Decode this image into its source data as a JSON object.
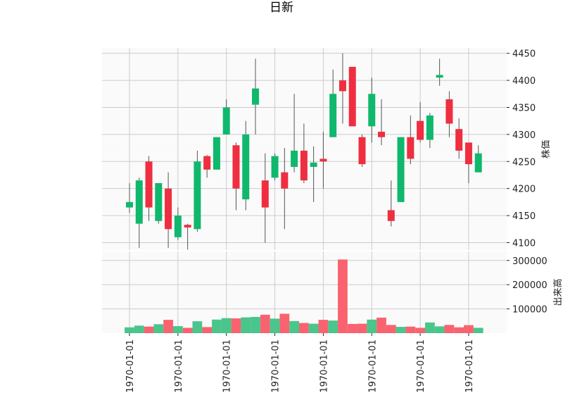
{
  "chart_data": {
    "type": "candlestick",
    "title": "日新",
    "price_ylabel": "株価",
    "volume_ylabel": "出来高",
    "price_ylim": [
      4085,
      4460
    ],
    "price_yticks": [
      4100,
      4150,
      4200,
      4250,
      4300,
      4350,
      4400,
      4450
    ],
    "volume_ylim": [
      0,
      340000
    ],
    "volume_yticks": [
      100000,
      200000,
      300000
    ],
    "volume_ytick_labels": [
      "100000",
      "200000",
      "300000"
    ],
    "xtick_index": [
      0,
      5,
      10,
      15,
      20,
      25,
      30,
      35
    ],
    "xtick_labels": [
      "1970-01-01",
      "1970-01-01",
      "1970-01-01",
      "1970-01-01",
      "1970-01-01",
      "1970-01-01",
      "1970-01-01",
      "1970-01-01"
    ],
    "grid": true,
    "up_color": "#ef2e40",
    "down_color": "#0fb86c",
    "up_volume_color": "#f9636f",
    "down_volume_color": "#4ac58c",
    "candles": [
      {
        "open": 4175,
        "high": 4210,
        "low": 4155,
        "close": 4165,
        "volume": 24000
      },
      {
        "open": 4215,
        "high": 4220,
        "low": 4090,
        "close": 4135,
        "volume": 31000
      },
      {
        "open": 4165,
        "high": 4260,
        "low": 4140,
        "close": 4250,
        "volume": 27000
      },
      {
        "open": 4210,
        "high": 4210,
        "low": 4135,
        "close": 4140,
        "volume": 37000
      },
      {
        "open": 4125,
        "high": 4230,
        "low": 4090,
        "close": 4200,
        "volume": 55000
      },
      {
        "open": 4150,
        "high": 4165,
        "low": 4105,
        "close": 4110,
        "volume": 29000
      },
      {
        "open": 4128,
        "high": 4135,
        "low": 4087,
        "close": 4133,
        "volume": 22000
      },
      {
        "open": 4250,
        "high": 4270,
        "low": 4120,
        "close": 4125,
        "volume": 49000
      },
      {
        "open": 4235,
        "high": 4262,
        "low": 4220,
        "close": 4260,
        "volume": 25000
      },
      {
        "open": 4295,
        "high": 4295,
        "low": 4235,
        "close": 4235,
        "volume": 56000
      },
      {
        "open": 4350,
        "high": 4365,
        "low": 4300,
        "close": 4300,
        "volume": 62000
      },
      {
        "open": 4200,
        "high": 4285,
        "low": 4160,
        "close": 4280,
        "volume": 61000
      },
      {
        "open": 4300,
        "high": 4325,
        "low": 4160,
        "close": 4180,
        "volume": 65000
      },
      {
        "open": 4385,
        "high": 4440,
        "low": 4300,
        "close": 4355,
        "volume": 67000
      },
      {
        "open": 4165,
        "high": 4265,
        "low": 4100,
        "close": 4215,
        "volume": 76000
      },
      {
        "open": 4260,
        "high": 4265,
        "low": 4215,
        "close": 4220,
        "volume": 60000
      },
      {
        "open": 4200,
        "high": 4275,
        "low": 4125,
        "close": 4230,
        "volume": 80000
      },
      {
        "open": 4270,
        "high": 4375,
        "low": 4230,
        "close": 4240,
        "volume": 50000
      },
      {
        "open": 4215,
        "high": 4320,
        "low": 4210,
        "close": 4270,
        "volume": 42000
      },
      {
        "open": 4248,
        "high": 4278,
        "low": 4175,
        "close": 4240,
        "volume": 39000
      },
      {
        "open": 4250,
        "high": 4305,
        "low": 4200,
        "close": 4255,
        "volume": 55000
      },
      {
        "open": 4375,
        "high": 4420,
        "low": 4295,
        "close": 4295,
        "volume": 52000
      },
      {
        "open": 4380,
        "high": 4450,
        "low": 4320,
        "close": 4400,
        "volume": 304000
      },
      {
        "open": 4315,
        "high": 4425,
        "low": 4315,
        "close": 4425,
        "volume": 38000
      },
      {
        "open": 4245,
        "high": 4300,
        "low": 4240,
        "close": 4295,
        "volume": 39000
      },
      {
        "open": 4375,
        "high": 4405,
        "low": 4285,
        "close": 4315,
        "volume": 56000
      },
      {
        "open": 4295,
        "high": 4365,
        "low": 4280,
        "close": 4305,
        "volume": 64000
      },
      {
        "open": 4140,
        "high": 4215,
        "low": 4130,
        "close": 4160,
        "volume": 34000
      },
      {
        "open": 4295,
        "high": 4295,
        "low": 4175,
        "close": 4175,
        "volume": 26000
      },
      {
        "open": 4255,
        "high": 4335,
        "low": 4245,
        "close": 4295,
        "volume": 27000
      },
      {
        "open": 4290,
        "high": 4360,
        "low": 4285,
        "close": 4325,
        "volume": 22000
      },
      {
        "open": 4335,
        "high": 4340,
        "low": 4275,
        "close": 4290,
        "volume": 44000
      },
      {
        "open": 4410,
        "high": 4440,
        "low": 4390,
        "close": 4405,
        "volume": 28000
      },
      {
        "open": 4320,
        "high": 4380,
        "low": 4295,
        "close": 4365,
        "volume": 34000
      },
      {
        "open": 4270,
        "high": 4330,
        "low": 4255,
        "close": 4310,
        "volume": 24000
      },
      {
        "open": 4245,
        "high": 4285,
        "low": 4210,
        "close": 4285,
        "volume": 33000
      },
      {
        "open": 4265,
        "high": 4280,
        "low": 4230,
        "close": 4230,
        "volume": 22000
      }
    ]
  }
}
